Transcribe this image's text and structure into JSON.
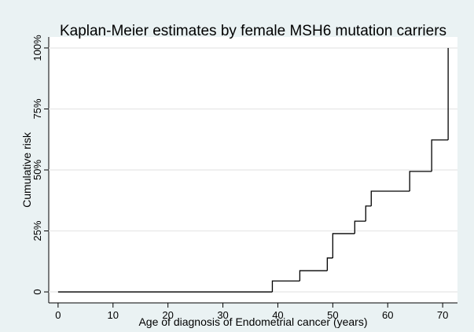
{
  "chart_data": {
    "type": "step",
    "title": "Kaplan-Meier estimates by female MSH6 mutation carriers",
    "x_label": "Age of diagnosis of Endometrial cancer (years)",
    "y_label": "Cumulative risk",
    "x": [
      0,
      39,
      44,
      49,
      50,
      54,
      56,
      57,
      64,
      68,
      71
    ],
    "values": [
      0,
      4.5,
      8.7,
      13.9,
      23.9,
      29,
      35.2,
      41.3,
      49.4,
      62.3,
      100
    ],
    "color": "#000000",
    "xlim": [
      -1.7,
      72.7
    ],
    "ylim": [
      -4.5,
      104.5
    ],
    "xticks": [
      0,
      10,
      20,
      30,
      40,
      50,
      60,
      70
    ],
    "yticks": [
      0,
      {
        "value": 25,
        "label": "25%"
      },
      {
        "value": 50,
        "label": "50%"
      },
      {
        "value": 75,
        "label": "75%"
      },
      {
        "value": 100,
        "label": "100%"
      }
    ],
    "grid": true
  }
}
